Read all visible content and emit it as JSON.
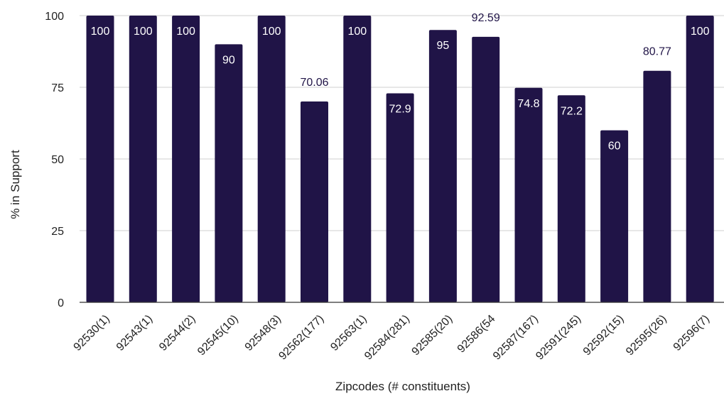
{
  "chart_data": {
    "type": "bar",
    "title": "",
    "xlabel": "Zipcodes (# constituents)",
    "ylabel": "% in Support",
    "ylim": [
      0,
      100
    ],
    "yticks": [
      "0",
      "25",
      "50",
      "75",
      "100"
    ],
    "grid": true,
    "legend": "none",
    "categories": [
      "92530(1)",
      "92543(1)",
      "92544(2)",
      "92545(10)",
      "92548(3)",
      "92562(177)",
      "92563(1)",
      "92584(281)",
      "92585(20)",
      "92586(54",
      "92587(167)",
      "92591(245)",
      "92592(15)",
      "92595(26)",
      "92596(7)"
    ],
    "values": [
      100,
      100,
      100,
      90,
      100,
      70.06,
      100,
      72.9,
      95,
      92.59,
      74.8,
      72.2,
      60,
      80.77,
      100
    ],
    "data_labels": [
      "100",
      "100",
      "100",
      "90",
      "100",
      "70.06",
      "100",
      "72.9",
      "95",
      "92.59",
      "74.8",
      "72.2",
      "60",
      "80.77",
      "100"
    ],
    "label_inside": [
      true,
      true,
      true,
      true,
      true,
      false,
      true,
      true,
      true,
      false,
      true,
      true,
      true,
      false,
      true
    ],
    "colors": {
      "bar": "#201447",
      "label_inside": "#ffffff",
      "label_outside": "#201447"
    }
  }
}
